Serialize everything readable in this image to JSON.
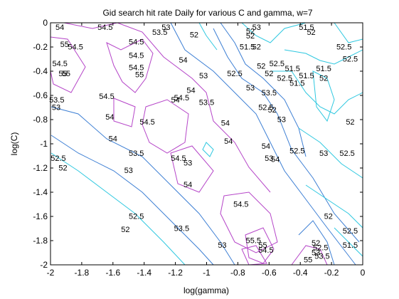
{
  "chart_data": {
    "type": "contour",
    "title": "Gid search hit rate Daily for various C and gamma, w=7",
    "xlabel": "log(gamma)",
    "ylabel": "log(C)",
    "xlim": [
      -2,
      0
    ],
    "ylim": [
      -2,
      0
    ],
    "xticks": [
      "-2",
      "-1.8",
      "-1.6",
      "-1.4",
      "-1.2",
      "-1",
      "-0.8",
      "-0.6",
      "-0.4",
      "-0.2",
      "0"
    ],
    "yticks": [
      "0",
      "-0.2",
      "-0.4",
      "-0.6",
      "-0.8",
      "-1",
      "-1.2",
      "-1.4",
      "-1.6",
      "-1.8",
      "-2"
    ],
    "grid": false,
    "colors": {
      "high": "#b545c8",
      "mid": "#3d7fd4",
      "low": "#2fc8e0",
      "frame": "#000000"
    },
    "contour_labels": [
      {
        "text": "54",
        "x": -1.94,
        "y": -0.06
      },
      {
        "text": "55",
        "x": -1.91,
        "y": -0.2
      },
      {
        "text": "54.5",
        "x": -1.84,
        "y": -0.22
      },
      {
        "text": "54.5",
        "x": -1.65,
        "y": -0.02
      },
      {
        "text": "53.5",
        "x": -1.3,
        "y": -0.1
      },
      {
        "text": "54.5",
        "x": -1.45,
        "y": -0.18
      },
      {
        "text": "54.5",
        "x": -1.45,
        "y": -0.29
      },
      {
        "text": "53",
        "x": -1.26,
        "y": -0.06
      },
      {
        "text": "54",
        "x": -1.15,
        "y": -0.33
      },
      {
        "text": "52",
        "x": -1.08,
        "y": -0.12
      },
      {
        "text": "54.5",
        "x": -1.94,
        "y": -0.36
      },
      {
        "text": "55",
        "x": -1.92,
        "y": -0.44
      },
      {
        "text": "55",
        "x": -1.9,
        "y": -0.44
      },
      {
        "text": "54.5",
        "x": -1.45,
        "y": -0.39
      },
      {
        "text": "55",
        "x": -1.43,
        "y": -0.45
      },
      {
        "text": "53",
        "x": -1.02,
        "y": -0.46
      },
      {
        "text": "52.5",
        "x": -0.82,
        "y": -0.44
      },
      {
        "text": "54",
        "x": -1.1,
        "y": -0.58
      },
      {
        "text": "53.5",
        "x": -1.96,
        "y": -0.66
      },
      {
        "text": "54.5",
        "x": -1.64,
        "y": -0.63
      },
      {
        "text": "54",
        "x": -1.2,
        "y": -0.66
      },
      {
        "text": "54.5",
        "x": -1.16,
        "y": -0.64
      },
      {
        "text": "53.5",
        "x": -1.0,
        "y": -0.68
      },
      {
        "text": "53",
        "x": -1.98,
        "y": -0.72
      },
      {
        "text": "54",
        "x": -1.62,
        "y": -0.8
      },
      {
        "text": "54.5",
        "x": -1.38,
        "y": -0.84
      },
      {
        "text": "54",
        "x": -0.88,
        "y": -0.85
      },
      {
        "text": "52",
        "x": -0.72,
        "y": -0.09
      },
      {
        "text": "52",
        "x": -0.72,
        "y": -0.13
      },
      {
        "text": "53",
        "x": -0.68,
        "y": -0.04
      },
      {
        "text": "52",
        "x": -0.68,
        "y": -0.22
      },
      {
        "text": "51.5",
        "x": -0.74,
        "y": -0.22
      },
      {
        "text": "52",
        "x": -0.65,
        "y": -0.38
      },
      {
        "text": "52",
        "x": -0.6,
        "y": -0.44
      },
      {
        "text": "51.5",
        "x": -0.36,
        "y": -0.04
      },
      {
        "text": "52",
        "x": -0.33,
        "y": -0.1
      },
      {
        "text": "52.5",
        "x": -0.55,
        "y": -0.36
      },
      {
        "text": "51.5",
        "x": -0.45,
        "y": -0.4
      },
      {
        "text": "52.5",
        "x": -0.5,
        "y": -0.48
      },
      {
        "text": "51.5",
        "x": -0.36,
        "y": -0.46
      },
      {
        "text": "51.5",
        "x": -0.42,
        "y": -0.52
      },
      {
        "text": "51.5",
        "x": -0.25,
        "y": -0.4
      },
      {
        "text": "52",
        "x": -0.25,
        "y": -0.48
      },
      {
        "text": "52.5",
        "x": -0.12,
        "y": -0.22
      },
      {
        "text": "52.5",
        "x": -0.08,
        "y": -0.32
      },
      {
        "text": "53",
        "x": -0.72,
        "y": -0.56
      },
      {
        "text": "53.5",
        "x": -0.6,
        "y": -0.6
      },
      {
        "text": "52",
        "x": -0.58,
        "y": -0.74
      },
      {
        "text": "52.5",
        "x": -0.62,
        "y": -0.72
      },
      {
        "text": "53",
        "x": -0.52,
        "y": -0.82
      },
      {
        "text": "52",
        "x": -0.08,
        "y": -0.84
      },
      {
        "text": "54",
        "x": -1.6,
        "y": -0.98
      },
      {
        "text": "53.5",
        "x": -1.45,
        "y": -1.1
      },
      {
        "text": "54",
        "x": -0.86,
        "y": -1.0
      },
      {
        "text": "54.5",
        "x": -1.18,
        "y": -1.14
      },
      {
        "text": "53",
        "x": -1.12,
        "y": -1.18
      },
      {
        "text": "54",
        "x": -0.62,
        "y": -1.04
      },
      {
        "text": "52.5",
        "x": -0.42,
        "y": -1.08
      },
      {
        "text": "53",
        "x": -0.6,
        "y": -1.14
      },
      {
        "text": "54",
        "x": -0.56,
        "y": -1.15
      },
      {
        "text": "53",
        "x": -0.25,
        "y": -1.1
      },
      {
        "text": "52.5",
        "x": -0.1,
        "y": -1.1
      },
      {
        "text": "52.5",
        "x": -1.95,
        "y": -1.14
      },
      {
        "text": "52",
        "x": -1.92,
        "y": -1.22
      },
      {
        "text": "53",
        "x": -1.5,
        "y": -1.24
      },
      {
        "text": "54",
        "x": -1.12,
        "y": -1.36
      },
      {
        "text": "54.5",
        "x": -0.78,
        "y": -1.52
      },
      {
        "text": "52",
        "x": -0.22,
        "y": -1.62
      },
      {
        "text": "52.5",
        "x": -1.45,
        "y": -1.62
      },
      {
        "text": "52",
        "x": -1.52,
        "y": -1.73
      },
      {
        "text": "53.5",
        "x": -1.16,
        "y": -1.72
      },
      {
        "text": "53",
        "x": -0.9,
        "y": -1.86
      },
      {
        "text": "55.5",
        "x": -0.7,
        "y": -1.82
      },
      {
        "text": "55",
        "x": -0.64,
        "y": -1.86
      },
      {
        "text": "54.5",
        "x": -0.62,
        "y": -1.9
      },
      {
        "text": "52.5",
        "x": -0.08,
        "y": -1.74
      },
      {
        "text": "51.5",
        "x": -0.08,
        "y": -1.86
      },
      {
        "text": "52",
        "x": -0.3,
        "y": -1.84
      },
      {
        "text": "52.5",
        "x": -0.27,
        "y": -1.88
      },
      {
        "text": "53",
        "x": -0.3,
        "y": -1.92
      },
      {
        "text": "53.5",
        "x": -0.26,
        "y": -1.95
      },
      {
        "text": "55",
        "x": -0.35,
        "y": -1.98
      }
    ]
  }
}
